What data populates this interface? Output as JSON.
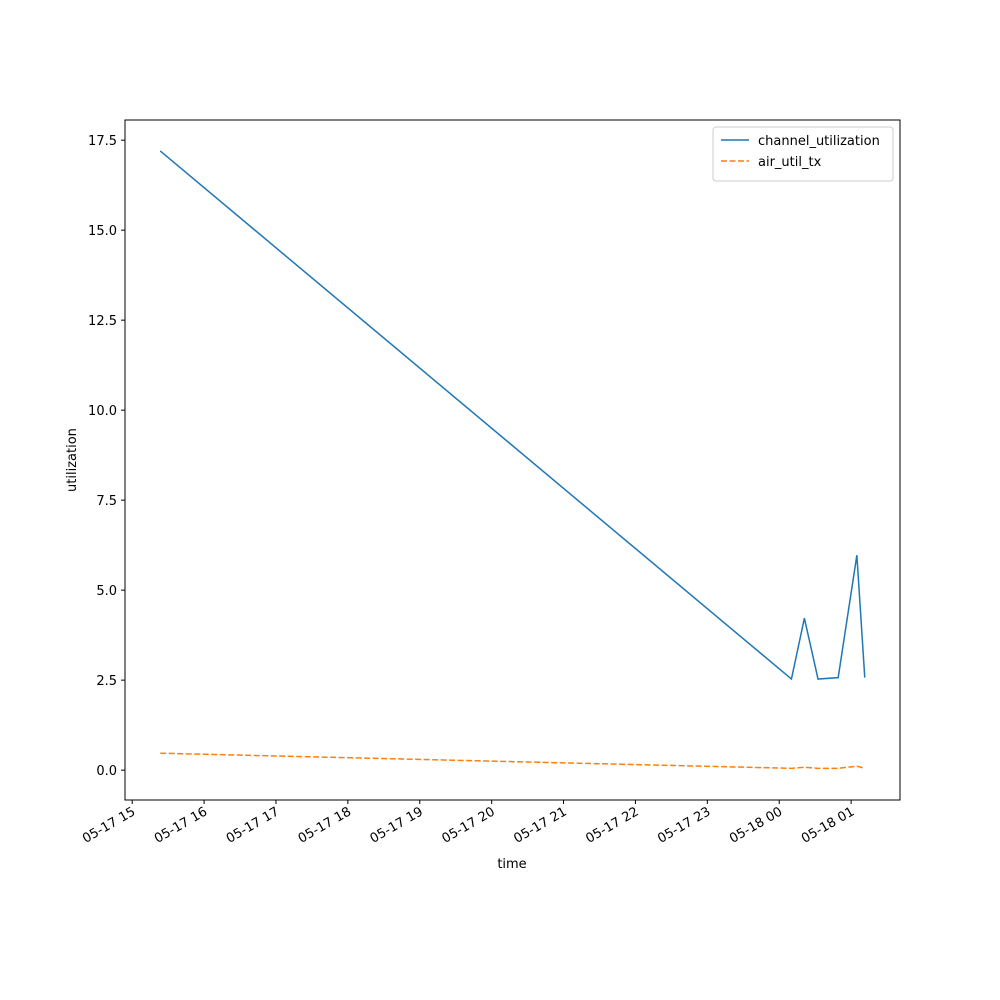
{
  "chart_data": {
    "type": "line",
    "xlabel": "time",
    "ylabel": "utilization",
    "x": [
      15.39,
      24.17,
      24.35,
      24.54,
      24.82,
      25.08,
      25.19
    ],
    "series": [
      {
        "name": "channel_utilization",
        "color": "#1f77b4",
        "linestyle": "solid",
        "values": [
          17.2,
          2.53,
          4.22,
          2.53,
          2.57,
          5.97,
          2.57
        ]
      },
      {
        "name": "air_util_tx",
        "color": "#ff7f0e",
        "linestyle": "dashed",
        "values": [
          0.47,
          0.05,
          0.08,
          0.05,
          0.05,
          0.11,
          0.05
        ]
      }
    ],
    "xlim": [
      14.9,
      25.68
    ],
    "xticks": [
      {
        "value": 15,
        "label": "05-17 15"
      },
      {
        "value": 16,
        "label": "05-17 16"
      },
      {
        "value": 17,
        "label": "05-17 17"
      },
      {
        "value": 18,
        "label": "05-17 18"
      },
      {
        "value": 19,
        "label": "05-17 19"
      },
      {
        "value": 20,
        "label": "05-17 20"
      },
      {
        "value": 21,
        "label": "05-17 21"
      },
      {
        "value": 22,
        "label": "05-17 22"
      },
      {
        "value": 23,
        "label": "05-17 23"
      },
      {
        "value": 24,
        "label": "05-18 00"
      },
      {
        "value": 25,
        "label": "05-18 01"
      }
    ],
    "ylim": [
      -0.83,
      18.06
    ],
    "yticks": [
      {
        "value": 0,
        "label": "0.0"
      },
      {
        "value": 2.5,
        "label": "2.5"
      },
      {
        "value": 5,
        "label": "5.0"
      },
      {
        "value": 7.5,
        "label": "7.5"
      },
      {
        "value": 10,
        "label": "10.0"
      },
      {
        "value": 12.5,
        "label": "12.5"
      },
      {
        "value": 15,
        "label": "15.0"
      },
      {
        "value": 17.5,
        "label": "17.5"
      }
    ],
    "legend": "upper right"
  }
}
